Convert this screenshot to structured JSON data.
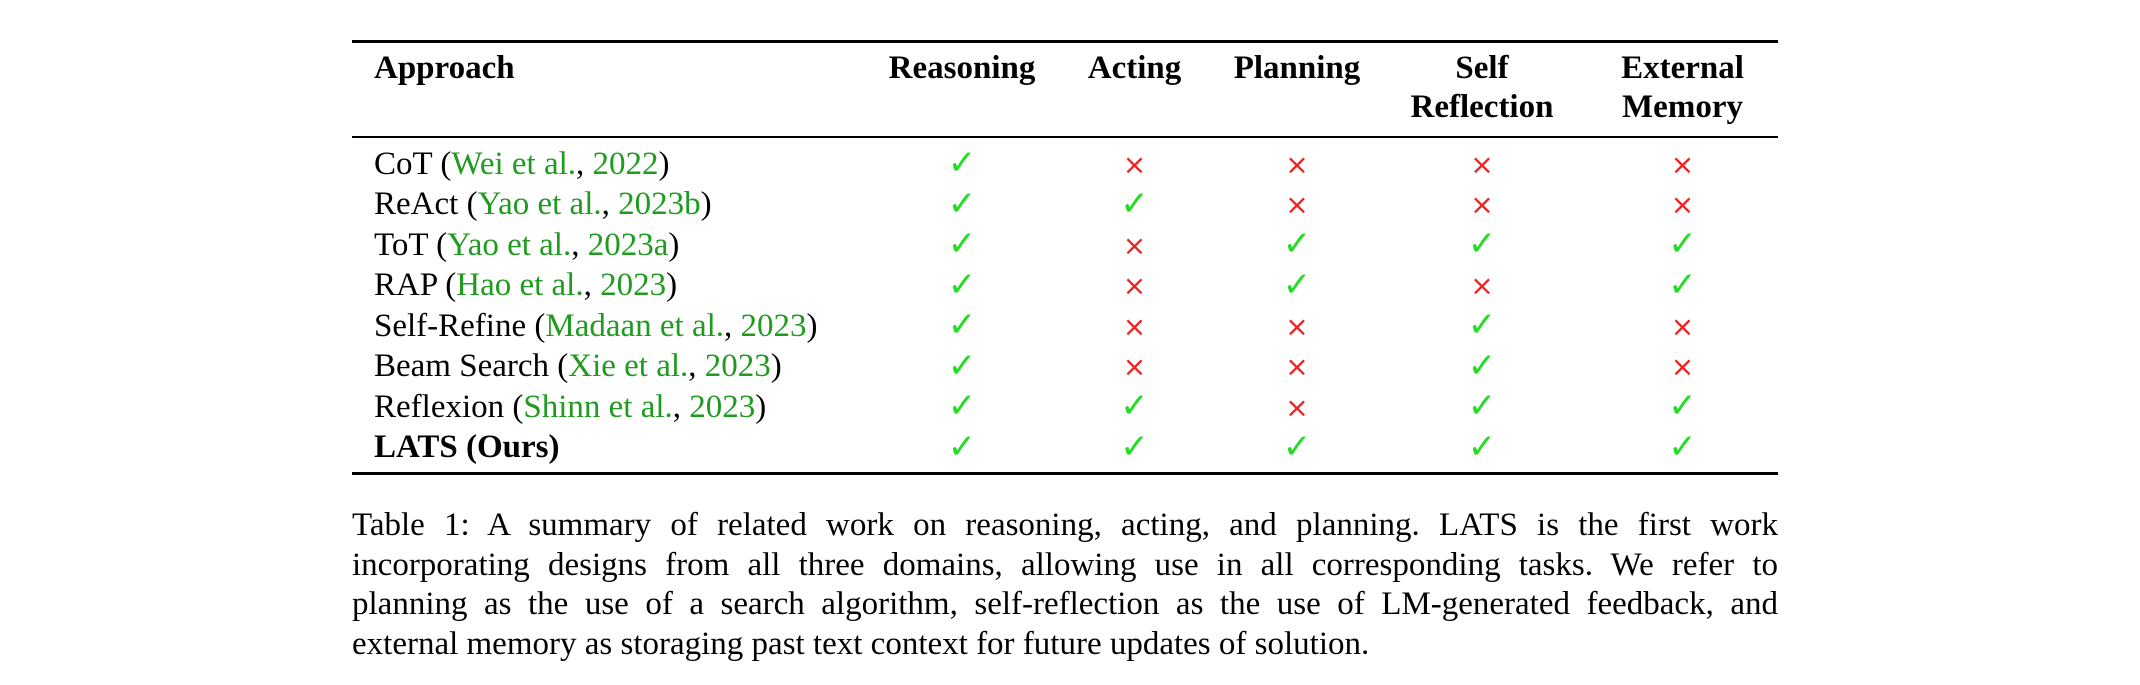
{
  "table": {
    "headers": {
      "approach": "Approach",
      "reasoning": "Reasoning",
      "acting": "Acting",
      "planning": "Planning",
      "self_reflection": [
        "Self",
        "Reflection"
      ],
      "external_memory": [
        "External",
        "Memory"
      ]
    },
    "symbols": {
      "check": "✓",
      "cross": "×",
      "check_color": "#22dd22",
      "cross_color": "#ee2222",
      "citation_color": "#1f9b1f"
    },
    "rows": [
      {
        "name": "CoT",
        "open": " (",
        "authors": "Wei et al.",
        "sep": ", ",
        "year": "2022",
        "close": ")",
        "bold": false,
        "reasoning": "✓",
        "acting": "×",
        "planning": "×",
        "self_reflection": "×",
        "external_memory": "×"
      },
      {
        "name": "ReAct",
        "open": " (",
        "authors": "Yao et al.",
        "sep": ", ",
        "year": "2023b",
        "close": ")",
        "bold": false,
        "reasoning": "✓",
        "acting": "✓",
        "planning": "×",
        "self_reflection": "×",
        "external_memory": "×"
      },
      {
        "name": "ToT",
        "open": " (",
        "authors": "Yao et al.",
        "sep": ", ",
        "year": "2023a",
        "close": ")",
        "bold": false,
        "reasoning": "✓",
        "acting": "×",
        "planning": "✓",
        "self_reflection": "✓",
        "external_memory": "✓"
      },
      {
        "name": "RAP",
        "open": " (",
        "authors": "Hao et al.",
        "sep": ", ",
        "year": "2023",
        "close": ")",
        "bold": false,
        "reasoning": "✓",
        "acting": "×",
        "planning": "✓",
        "self_reflection": "×",
        "external_memory": "✓"
      },
      {
        "name": "Self-Refine",
        "open": " (",
        "authors": "Madaan et al.",
        "sep": ", ",
        "year": "2023",
        "close": ")",
        "bold": false,
        "reasoning": "✓",
        "acting": "×",
        "planning": "×",
        "self_reflection": "✓",
        "external_memory": "×"
      },
      {
        "name": "Beam Search",
        "open": " (",
        "authors": "Xie et al.",
        "sep": ", ",
        "year": "2023",
        "close": ")",
        "bold": false,
        "reasoning": "✓",
        "acting": "×",
        "planning": "×",
        "self_reflection": "✓",
        "external_memory": "×"
      },
      {
        "name": "Reflexion",
        "open": " (",
        "authors": "Shinn et al.",
        "sep": ", ",
        "year": "2023",
        "close": ")",
        "bold": false,
        "reasoning": "✓",
        "acting": "✓",
        "planning": "×",
        "self_reflection": "✓",
        "external_memory": "✓"
      },
      {
        "name": "LATS (Ours)",
        "open": "",
        "authors": "",
        "sep": "",
        "year": "",
        "close": "",
        "bold": true,
        "reasoning": "✓",
        "acting": "✓",
        "planning": "✓",
        "self_reflection": "✓",
        "external_memory": "✓"
      }
    ]
  },
  "caption": {
    "lines": [
      "Table 1: A summary of related work on reasoning, acting, and planning. LATS is the first work",
      "incorporating designs from all three domains, allowing use in all corresponding tasks. We refer to",
      "planning as the use of a search algorithm, self-reflection as the use of LM-generated feedback, and",
      "external memory as storaging past text context for future updates of solution."
    ]
  }
}
